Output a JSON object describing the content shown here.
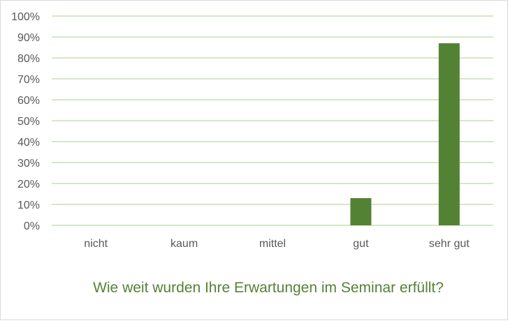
{
  "chart_data": {
    "type": "bar",
    "title": "Wie weit wurden Ihre Erwartungen im Seminar erfüllt?",
    "xlabel": "",
    "ylabel": "",
    "categories": [
      "nicht",
      "kaum",
      "mittel",
      "gut",
      "sehr gut"
    ],
    "values": [
      0,
      0,
      0,
      13,
      87
    ],
    "value_unit": "%",
    "ylim": [
      0,
      100
    ],
    "yticks": [
      0,
      10,
      20,
      30,
      40,
      50,
      60,
      70,
      80,
      90,
      100
    ],
    "ytick_labels": [
      "0%",
      "10%",
      "20%",
      "30%",
      "40%",
      "50%",
      "60%",
      "70%",
      "80%",
      "90%",
      "100%"
    ],
    "grid": true,
    "legend": "none",
    "colors": {
      "bar": "#548235",
      "grid": "#a9d18e",
      "title": "#548235",
      "text": "#595959"
    }
  }
}
